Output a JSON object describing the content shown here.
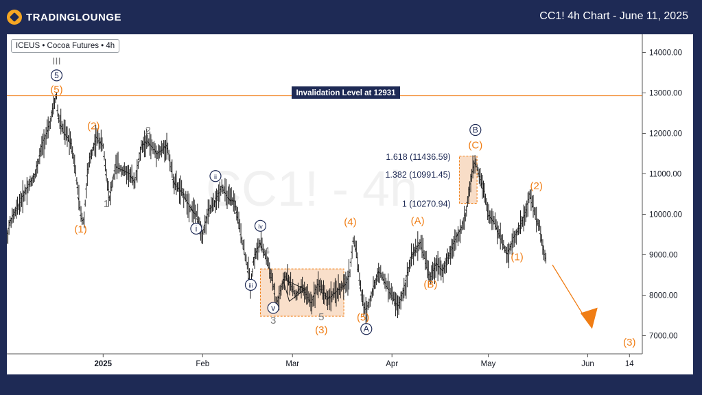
{
  "header": {
    "brand": "TRADINGLOUNGE",
    "title": "CC1! 4h Chart - June 11, 2025"
  },
  "symbol_label": "ICEUS • Cocoa Futures • 4h",
  "watermark": "CC1! - 4h",
  "invalidation_label": "Invalidation Level at 12931",
  "colors": {
    "orange": "#f07d14",
    "navy": "#1e2a55",
    "gray": "#7a7a7a",
    "candle": "#1a1a1a",
    "box": "#f6d2b4"
  },
  "chart_data": {
    "type": "bar",
    "x_ticks": [
      {
        "label": "2025",
        "d": 15,
        "bold": true
      },
      {
        "label": "Feb",
        "d": 46
      },
      {
        "label": "Mar",
        "d": 74
      },
      {
        "label": "Apr",
        "d": 105
      },
      {
        "label": "May",
        "d": 135
      },
      {
        "label": "Jun",
        "d": 166
      },
      {
        "label": "14",
        "d": 179
      }
    ],
    "y_ticks": [
      {
        "label": "14000.00",
        "v": 14000
      },
      {
        "label": "13000.00",
        "v": 13000
      },
      {
        "label": "12000.00",
        "v": 12000
      },
      {
        "label": "11000.00",
        "v": 11000
      },
      {
        "label": "10000.00",
        "v": 10000
      },
      {
        "label": "9000.00",
        "v": 9000
      },
      {
        "label": "8000.00",
        "v": 8000
      },
      {
        "label": "7000.00",
        "v": 7000
      }
    ],
    "ylim": [
      6550,
      14450
    ],
    "xlim_days": [
      -15,
      183
    ],
    "invalidation_level": 12931,
    "price_path": [
      [
        -15,
        9400
      ],
      [
        -14,
        9800
      ],
      [
        -12,
        10100
      ],
      [
        -9,
        10600
      ],
      [
        -6,
        11000
      ],
      [
        -4,
        11700
      ],
      [
        -2,
        12100
      ],
      [
        0,
        12800
      ],
      [
        0.5,
        12931
      ],
      [
        1,
        12400
      ],
      [
        3,
        12000
      ],
      [
        5,
        11800
      ],
      [
        6,
        11300
      ],
      [
        7,
        10700
      ],
      [
        8,
        10000
      ],
      [
        9,
        9800
      ],
      [
        10,
        10900
      ],
      [
        11,
        11400
      ],
      [
        13,
        11900
      ],
      [
        15,
        11700
      ],
      [
        16,
        11000
      ],
      [
        17,
        10400
      ],
      [
        19,
        11200
      ],
      [
        21,
        11100
      ],
      [
        23,
        11000
      ],
      [
        25,
        10800
      ],
      [
        27,
        11700
      ],
      [
        29,
        11800
      ],
      [
        32,
        11500
      ],
      [
        35,
        11700
      ],
      [
        37,
        10800
      ],
      [
        40,
        10500
      ],
      [
        42,
        10200
      ],
      [
        44,
        10000
      ],
      [
        46,
        9500
      ],
      [
        48,
        10100
      ],
      [
        50,
        10300
      ],
      [
        52,
        10700
      ],
      [
        54,
        10400
      ],
      [
        56,
        10300
      ],
      [
        58,
        9500
      ],
      [
        60,
        8700
      ],
      [
        61,
        8200
      ],
      [
        62,
        8900
      ],
      [
        64,
        9300
      ],
      [
        66,
        8900
      ],
      [
        68,
        8300
      ],
      [
        69,
        7700
      ],
      [
        70,
        8000
      ],
      [
        72,
        8500
      ],
      [
        75,
        8000
      ],
      [
        77,
        8200
      ],
      [
        80,
        7800
      ],
      [
        82,
        8300
      ],
      [
        85,
        7900
      ],
      [
        88,
        8100
      ],
      [
        91,
        8300
      ],
      [
        92,
        8600
      ],
      [
        93,
        9400
      ],
      [
        94,
        9100
      ],
      [
        95,
        8300
      ],
      [
        96,
        7800
      ],
      [
        97,
        7600
      ],
      [
        99,
        8100
      ],
      [
        101,
        8600
      ],
      [
        103,
        8300
      ],
      [
        105,
        8000
      ],
      [
        107,
        7700
      ],
      [
        109,
        8200
      ],
      [
        111,
        8900
      ],
      [
        113,
        9200
      ],
      [
        114,
        9300
      ],
      [
        115,
        9000
      ],
      [
        117,
        8400
      ],
      [
        119,
        8800
      ],
      [
        121,
        8600
      ],
      [
        123,
        9000
      ],
      [
        125,
        9400
      ],
      [
        127,
        9700
      ],
      [
        128,
        10000
      ],
      [
        130,
        11000
      ],
      [
        131,
        11300
      ],
      [
        133,
        10800
      ],
      [
        134,
        10500
      ],
      [
        135,
        10000
      ],
      [
        137,
        9800
      ],
      [
        139,
        9400
      ],
      [
        141,
        9000
      ],
      [
        143,
        9400
      ],
      [
        145,
        9700
      ],
      [
        147,
        10100
      ],
      [
        148,
        10500
      ],
      [
        149,
        10200
      ],
      [
        150,
        9900
      ],
      [
        151,
        9700
      ],
      [
        152,
        9200
      ],
      [
        153,
        8900
      ]
    ],
    "labels": [
      {
        "text": "(5)",
        "d": 0.5,
        "v": 13000,
        "type": "orange"
      },
      {
        "text": "5",
        "d": 0.5,
        "v": 13350,
        "type": "circle"
      },
      {
        "text": "III",
        "d": 0.5,
        "v": 13700,
        "type": "gray"
      },
      {
        "text": "(1)",
        "d": 8,
        "v": 9550,
        "type": "orange"
      },
      {
        "text": "(2)",
        "d": 12,
        "v": 12100,
        "type": "orange"
      },
      {
        "text": "1",
        "d": 16,
        "v": 10180,
        "type": "gray"
      },
      {
        "text": "2",
        "d": 29,
        "v": 11990,
        "type": "gray"
      },
      {
        "text": "i",
        "d": 44,
        "v": 9560,
        "type": "circle"
      },
      {
        "text": "ii",
        "d": 50,
        "v": 10860,
        "type": "circle"
      },
      {
        "text": "iii",
        "d": 61,
        "v": 8170,
        "type": "circle"
      },
      {
        "text": "iv",
        "d": 64,
        "v": 9630,
        "type": "circle"
      },
      {
        "text": "4",
        "d": 66,
        "v": 9020,
        "type": "gray"
      },
      {
        "text": "v",
        "d": 68,
        "v": 7600,
        "type": "circle"
      },
      {
        "text": "3",
        "d": 68,
        "v": 7300,
        "type": "gray"
      },
      {
        "text": "5",
        "d": 83,
        "v": 7380,
        "type": "gray"
      },
      {
        "text": "(3)",
        "d": 83,
        "v": 7060,
        "type": "orange"
      },
      {
        "text": "(4)",
        "d": 92,
        "v": 9730,
        "type": "orange"
      },
      {
        "text": "(5)",
        "d": 96,
        "v": 7370,
        "type": "orange"
      },
      {
        "text": "A",
        "d": 97,
        "v": 7080,
        "type": "circle"
      },
      {
        "text": "(A)",
        "d": 113,
        "v": 9750,
        "type": "orange"
      },
      {
        "text": "(B)",
        "d": 117,
        "v": 8190,
        "type": "orange"
      },
      {
        "text": "(C)",
        "d": 131,
        "v": 11630,
        "type": "orange"
      },
      {
        "text": "B",
        "d": 131,
        "v": 12000,
        "type": "circle"
      },
      {
        "text": "(1)",
        "d": 144,
        "v": 8860,
        "type": "orange"
      },
      {
        "text": "(2)",
        "d": 150,
        "v": 10620,
        "type": "orange"
      },
      {
        "text": "(3)",
        "d": 179,
        "v": 6750,
        "type": "orange"
      }
    ],
    "fib_levels": [
      {
        "text": "1.618 (11436.59)",
        "d": 122,
        "v": 11436.59
      },
      {
        "text": "1.382 (10991.45)",
        "d": 122,
        "v": 10991.45
      },
      {
        "text": "1 (10270.94)",
        "d": 122,
        "v": 10270.94
      }
    ]
  }
}
